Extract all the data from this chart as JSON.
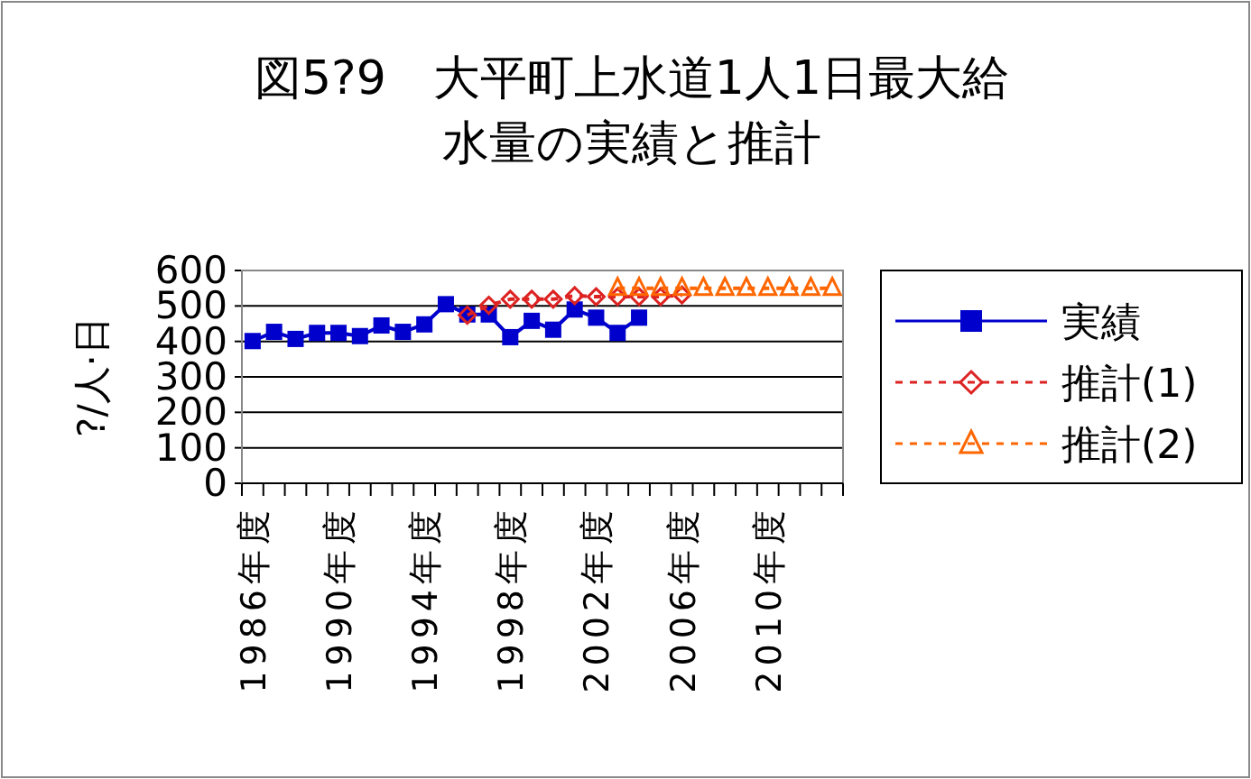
{
  "chart_data": {
    "type": "line",
    "title": "図5?9　大平町上水道1人1日最大給水量の実績と推計",
    "ylabel": "?/人·日",
    "categories": [
      "1986年度",
      null,
      null,
      null,
      "1990年度",
      null,
      null,
      null,
      "1994年度",
      null,
      null,
      null,
      "1998年度",
      null,
      null,
      null,
      "2002年度",
      null,
      null,
      null,
      "2006年度",
      null,
      null,
      null,
      "2010年度",
      null,
      null,
      null
    ],
    "series": [
      {
        "name": "実績",
        "color": "#0000cc",
        "marker": "square",
        "line_style": "solid",
        "values": [
          401,
          427,
          407,
          424,
          424,
          415,
          445,
          427,
          448,
          505,
          476,
          476,
          412,
          458,
          433,
          490,
          467,
          424,
          467,
          null,
          null,
          null,
          null,
          null,
          null,
          null,
          null,
          null
        ]
      },
      {
        "name": "推計(1)",
        "color": "#dd2222",
        "marker": "diamond",
        "line_style": "dashed",
        "values": [
          null,
          null,
          null,
          null,
          null,
          null,
          null,
          null,
          null,
          null,
          474,
          502,
          519,
          519,
          519,
          529,
          526,
          526,
          526,
          526,
          531,
          null,
          null,
          null,
          null,
          null,
          null,
          null
        ]
      },
      {
        "name": "推計(2)",
        "color": "#ff6600",
        "marker": "triangle",
        "line_style": "dashed",
        "values": [
          null,
          null,
          null,
          null,
          null,
          null,
          null,
          null,
          null,
          null,
          null,
          null,
          null,
          null,
          null,
          null,
          null,
          550,
          550,
          550,
          550,
          550,
          550,
          550,
          550,
          550,
          550,
          550
        ]
      }
    ],
    "ylim": [
      0,
      600
    ],
    "yticks": [
      0,
      100,
      200,
      300,
      400,
      500,
      600
    ],
    "grid": "y",
    "legend": "right"
  }
}
